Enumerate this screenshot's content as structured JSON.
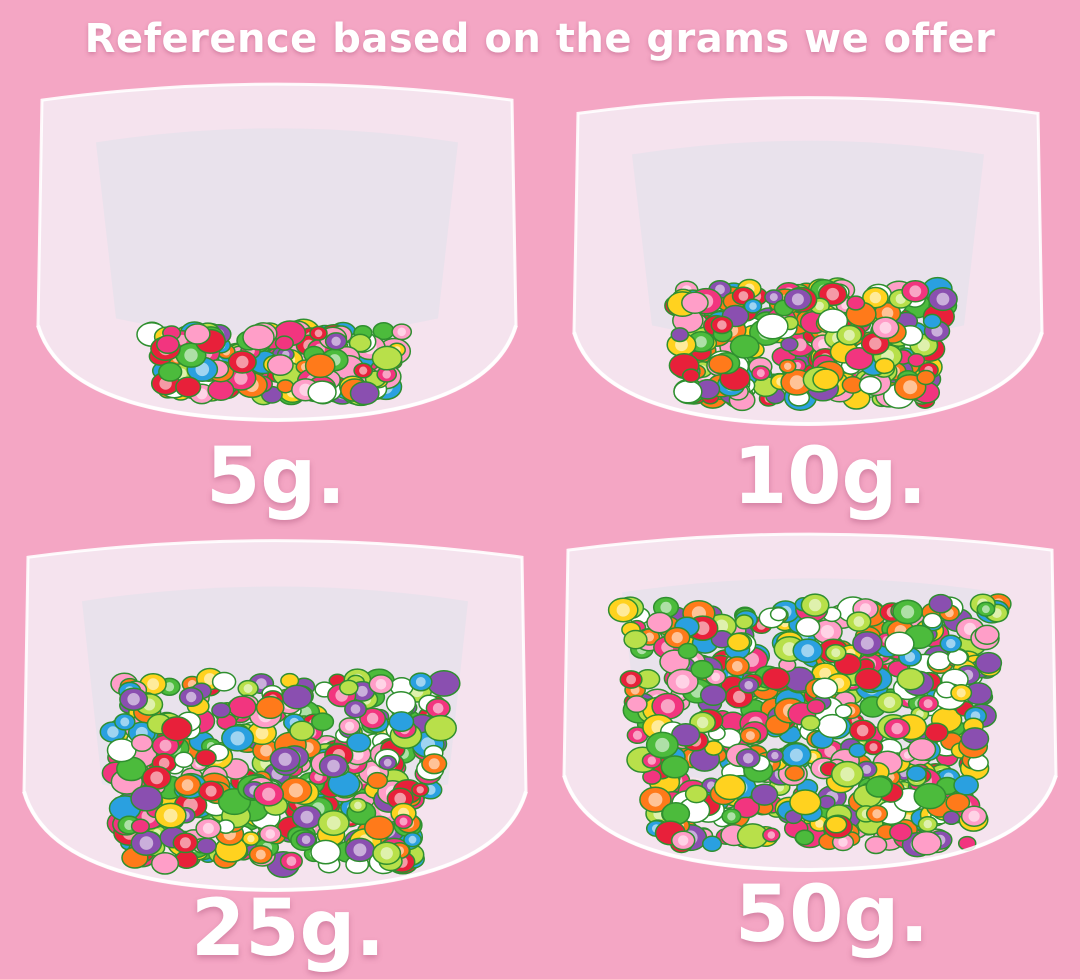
{
  "title": "Reference based on the grams we offer",
  "background_color": "#f4a6c4",
  "items": [
    {
      "label": "5g.",
      "fill_level": 0.2
    },
    {
      "label": "10g.",
      "fill_level": 0.4
    },
    {
      "label": "25g.",
      "fill_level": 0.65
    },
    {
      "label": "50g.",
      "fill_level": 0.9
    }
  ],
  "confetti_colors": [
    "#f2357f",
    "#ffd21f",
    "#4cbb3c",
    "#ff7a1a",
    "#e8203a",
    "#8a4fb0",
    "#ff9ec8",
    "#2aa0e0",
    "#ffffff",
    "#b8e04a"
  ]
}
